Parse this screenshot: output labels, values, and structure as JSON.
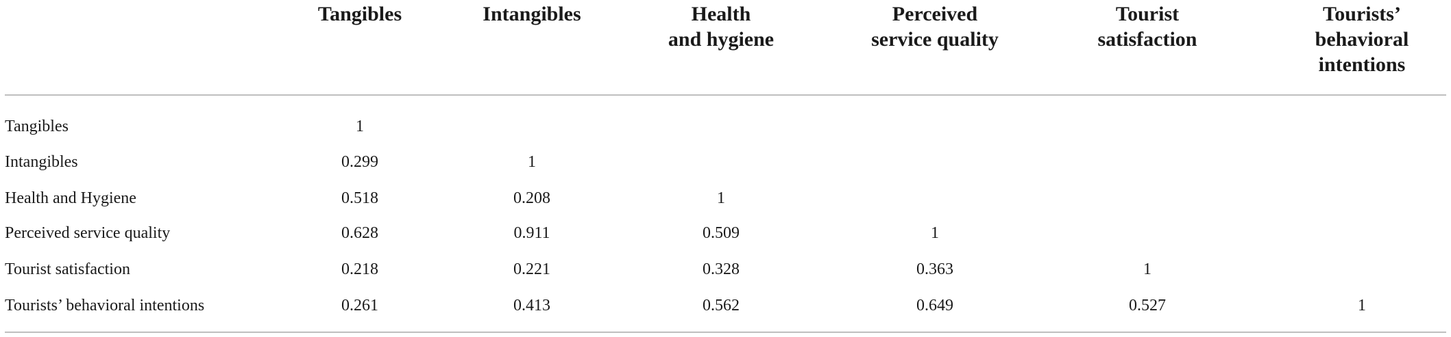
{
  "table": {
    "columns": [
      [
        "Tangibles"
      ],
      [
        "Intangibles"
      ],
      [
        "Health",
        "and hygiene"
      ],
      [
        "Perceived",
        "service quality"
      ],
      [
        "Tourist",
        "satisfaction"
      ],
      [
        "Tourists’",
        "behavioral",
        "intentions"
      ]
    ],
    "rows": [
      {
        "label": "Tangibles",
        "values": [
          1
        ]
      },
      {
        "label": "Intangibles",
        "values": [
          0.299,
          1
        ]
      },
      {
        "label": "Health and Hygiene",
        "values": [
          0.518,
          0.208,
          1
        ]
      },
      {
        "label": "Perceived service quality",
        "values": [
          0.628,
          0.911,
          0.509,
          1
        ]
      },
      {
        "label": "Tourist satisfaction",
        "values": [
          0.218,
          0.221,
          0.328,
          0.363,
          1
        ]
      },
      {
        "label": "Tourists’ behavioral intentions",
        "values": [
          0.261,
          0.413,
          0.562,
          0.649,
          0.527,
          1
        ]
      }
    ]
  }
}
